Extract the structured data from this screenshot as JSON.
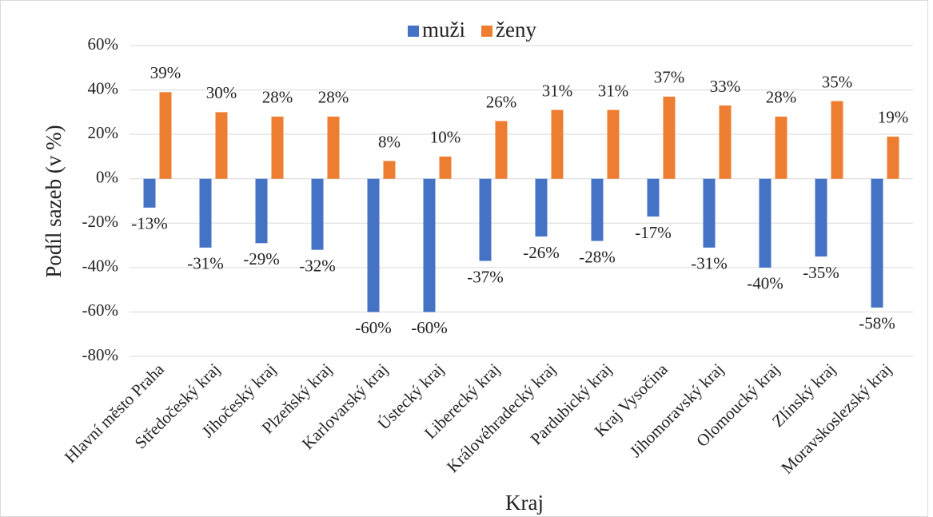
{
  "chart_data": {
    "type": "bar",
    "x_label": "Kraj",
    "y_label": "Podíl sazeb (v %)",
    "categories": [
      "Hlavní město Praha",
      "Středočeský kraj",
      "Jihočeský kraj",
      "Plzeňský kraj",
      "Karlovarský kraj",
      "Ústecký kraj",
      "Liberecký kraj",
      "Královéhradecký kraj",
      "Pardubický kraj",
      "Kraj Vysočina",
      "Jihomoravský kraj",
      "Olomoucký kraj",
      "Zlínský kraj",
      "Moravskoslezský kraj"
    ],
    "series": [
      {
        "name": "muži",
        "color": "#4472c4",
        "values": [
          -13,
          -31,
          -29,
          -32,
          -60,
          -60,
          -37,
          -26,
          -28,
          -17,
          -31,
          -40,
          -35,
          -58
        ],
        "value_labels": [
          "-13%",
          "-31%",
          "-29%",
          "-32%",
          "-60%",
          "-60%",
          "-37%",
          "-26%",
          "-28%",
          "-17%",
          "-31%",
          "-40%",
          "-35%",
          "-58%"
        ]
      },
      {
        "name": "ženy",
        "color": "#ed7d31",
        "values": [
          39,
          30,
          28,
          28,
          8,
          10,
          26,
          31,
          31,
          37,
          33,
          28,
          35,
          19
        ],
        "value_labels": [
          "39%",
          "30%",
          "28%",
          "28%",
          "8%",
          "10%",
          "26%",
          "31%",
          "31%",
          "37%",
          "33%",
          "28%",
          "35%",
          "19%"
        ]
      }
    ],
    "ylim": [
      -80,
      60
    ],
    "yticks": [
      {
        "value": -80,
        "label": "-80%"
      },
      {
        "value": -60,
        "label": "-60%"
      },
      {
        "value": -40,
        "label": "-40%"
      },
      {
        "value": -20,
        "label": "-20%"
      },
      {
        "value": 0,
        "label": "0%"
      },
      {
        "value": 20,
        "label": "20%"
      },
      {
        "value": 40,
        "label": "40%"
      },
      {
        "value": 60,
        "label": "60%"
      }
    ],
    "grid": true,
    "legend": "top"
  }
}
